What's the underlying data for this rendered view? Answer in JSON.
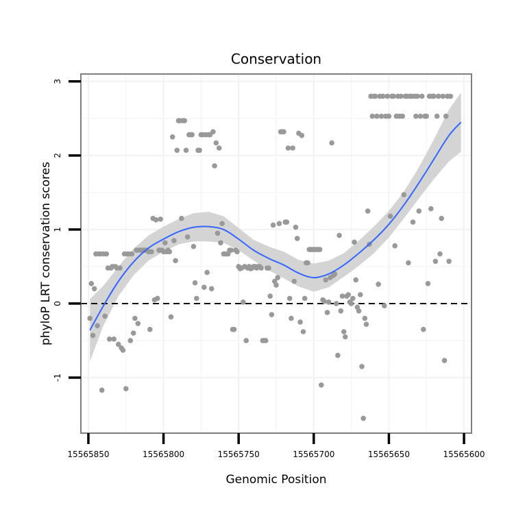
{
  "chart_data": {
    "type": "scatter",
    "title": "Conservation",
    "xlabel": "Genomic Position",
    "ylabel": "phyloP LRT conservation scores",
    "xlim": [
      15565855,
      15565595
    ],
    "ylim": [
      -1.75,
      3.1
    ],
    "x_reversed": true,
    "xticks": [
      15565850,
      15565800,
      15565750,
      15565700,
      15565650,
      15565600
    ],
    "xtick_labels": [
      "15565850",
      "15565800",
      "15565750",
      "15565700",
      "15565650",
      "15565600"
    ],
    "yticks": [
      -1,
      0,
      1,
      2,
      3
    ],
    "ytick_labels": [
      "-1",
      "0",
      "1",
      "2",
      "3"
    ],
    "reference_line": {
      "y": 0,
      "style": "dashed"
    },
    "colors": {
      "points": "#999999",
      "smooth": "#3366ff",
      "band": "#d4d4d4",
      "frame": "#7f7f7f",
      "grid": "#f2f2f2"
    },
    "series": [
      {
        "name": "scores",
        "points": [
          [
            15565849,
            -0.2
          ],
          [
            15565848,
            0.27
          ],
          [
            15565847,
            -0.43
          ],
          [
            15565846,
            0.2
          ],
          [
            15565845,
            0.67
          ],
          [
            15565844,
            -0.3
          ],
          [
            15565843,
            0.67
          ],
          [
            15565842,
            0.67
          ],
          [
            15565841,
            -1.17
          ],
          [
            15565840,
            0.67
          ],
          [
            15565839,
            -0.17
          ],
          [
            15565838,
            0.67
          ],
          [
            15565837,
            0.48
          ],
          [
            15565836,
            -0.48
          ],
          [
            15565835,
            0.48
          ],
          [
            15565834,
            0.5
          ],
          [
            15565833,
            -0.48
          ],
          [
            15565832,
            0.5
          ],
          [
            15565831,
            0.48
          ],
          [
            15565830,
            -0.55
          ],
          [
            15565829,
            0.48
          ],
          [
            15565828,
            -0.6
          ],
          [
            15565827,
            -0.63
          ],
          [
            15565826,
            0.67
          ],
          [
            15565825,
            -1.15
          ],
          [
            15565824,
            0.67
          ],
          [
            15565823,
            0.67
          ],
          [
            15565822,
            -0.5
          ],
          [
            15565821,
            0.67
          ],
          [
            15565820,
            -0.4
          ],
          [
            15565819,
            -0.2
          ],
          [
            15565818,
            0.72
          ],
          [
            15565817,
            -0.27
          ],
          [
            15565816,
            0.72
          ],
          [
            15565815,
            0.72
          ],
          [
            15565814,
            0.72
          ],
          [
            15565813,
            0.72
          ],
          [
            15565812,
            0.72
          ],
          [
            15565811,
            0.72
          ],
          [
            15565810,
            0.7
          ],
          [
            15565809,
            -0.35
          ],
          [
            15565808,
            0.7
          ],
          [
            15565807,
            1.15
          ],
          [
            15565806,
            0.05
          ],
          [
            15565805,
            1.13
          ],
          [
            15565804,
            0.07
          ],
          [
            15565803,
            0.72
          ],
          [
            15565802,
            1.14
          ],
          [
            15565801,
            0.72
          ],
          [
            15565800,
            0.7
          ],
          [
            15565799,
            0.82
          ],
          [
            15565798,
            0.7
          ],
          [
            15565797,
            0.72
          ],
          [
            15565796,
            0.7
          ],
          [
            15565795,
            -0.18
          ],
          [
            15565794,
            2.25
          ],
          [
            15565793,
            0.85
          ],
          [
            15565792,
            0.58
          ],
          [
            15565791,
            2.07
          ],
          [
            15565790,
            2.47
          ],
          [
            15565789,
            2.47
          ],
          [
            15565788,
            1.15
          ],
          [
            15565787,
            2.47
          ],
          [
            15565786,
            2.47
          ],
          [
            15565785,
            2.07
          ],
          [
            15565784,
            0.9
          ],
          [
            15565783,
            2.28
          ],
          [
            15565782,
            2.28
          ],
          [
            15565781,
            2.28
          ],
          [
            15565780,
            0.77
          ],
          [
            15565779,
            0.28
          ],
          [
            15565778,
            0.07
          ],
          [
            15565777,
            2.07
          ],
          [
            15565776,
            2.07
          ],
          [
            15565775,
            2.28
          ],
          [
            15565774,
            2.28
          ],
          [
            15565773,
            0.22
          ],
          [
            15565772,
            2.28
          ],
          [
            15565771,
            0.42
          ],
          [
            15565770,
            2.28
          ],
          [
            15565769,
            2.28
          ],
          [
            15565768,
            0.2
          ],
          [
            15565767,
            2.32
          ],
          [
            15565766,
            1.86
          ],
          [
            15565765,
            2.17
          ],
          [
            15565764,
            0.95
          ],
          [
            15565763,
            2.1
          ],
          [
            15565762,
            0.82
          ],
          [
            15565761,
            1.08
          ],
          [
            15565760,
            0.67
          ],
          [
            15565759,
            0.67
          ],
          [
            15565758,
            0.67
          ],
          [
            15565757,
            0.67
          ],
          [
            15565756,
            0.72
          ],
          [
            15565755,
            0.72
          ],
          [
            15565754,
            -0.35
          ],
          [
            15565753,
            -0.35
          ],
          [
            15565752,
            0.72
          ],
          [
            15565751,
            0.7
          ],
          [
            15565750,
            0.5
          ],
          [
            15565749,
            0.47
          ],
          [
            15565748,
            0.48
          ],
          [
            15565747,
            0.02
          ],
          [
            15565746,
            0.5
          ],
          [
            15565745,
            -0.5
          ],
          [
            15565744,
            0.48
          ],
          [
            15565743,
            0.5
          ],
          [
            15565742,
            0.47
          ],
          [
            15565741,
            0.48
          ],
          [
            15565740,
            0.5
          ],
          [
            15565739,
            0.5
          ],
          [
            15565738,
            0.48
          ],
          [
            15565737,
            0.5
          ],
          [
            15565736,
            0.5
          ],
          [
            15565735,
            0.48
          ],
          [
            15565734,
            -0.5
          ],
          [
            15565733,
            -0.5
          ],
          [
            15565732,
            -0.5
          ],
          [
            15565731,
            0.48
          ],
          [
            15565730,
            0.48
          ],
          [
            15565729,
            0.1
          ],
          [
            15565728,
            -0.15
          ],
          [
            15565727,
            1.06
          ],
          [
            15565726,
            0.3
          ],
          [
            15565725,
            0.25
          ],
          [
            15565724,
            0.35
          ],
          [
            15565723,
            1.08
          ],
          [
            15565722,
            2.32
          ],
          [
            15565721,
            2.32
          ],
          [
            15565720,
            2.32
          ],
          [
            15565719,
            1.1
          ],
          [
            15565718,
            1.1
          ],
          [
            15565717,
            2.1
          ],
          [
            15565716,
            0.07
          ],
          [
            15565715,
            -0.2
          ],
          [
            15565714,
            2.1
          ],
          [
            15565713,
            0.3
          ],
          [
            15565712,
            1.03
          ],
          [
            15565711,
            0.88
          ],
          [
            15565710,
            2.3
          ],
          [
            15565709,
            -0.25
          ],
          [
            15565708,
            2.27
          ],
          [
            15565707,
            -0.38
          ],
          [
            15565706,
            0.07
          ],
          [
            15565705,
            0.55
          ],
          [
            15565704,
            0.55
          ],
          [
            15565703,
            0.73
          ],
          [
            15565702,
            0.73
          ],
          [
            15565701,
            0.73
          ],
          [
            15565700,
            0.73
          ],
          [
            15565699,
            0.73
          ],
          [
            15565698,
            0.73
          ],
          [
            15565697,
            0.73
          ],
          [
            15565696,
            0.73
          ],
          [
            15565695,
            -1.1
          ],
          [
            15565694,
            0.05
          ],
          [
            15565693,
            0.03
          ],
          [
            15565692,
            0.32
          ],
          [
            15565691,
            -0.12
          ],
          [
            15565690,
            0.02
          ],
          [
            15565689,
            0.35
          ],
          [
            15565688,
            2.17
          ],
          [
            15565687,
            0.38
          ],
          [
            15565686,
            0.4
          ],
          [
            15565685,
            0.0
          ],
          [
            15565684,
            -0.7
          ],
          [
            15565683,
            0.92
          ],
          [
            15565682,
            -0.1
          ],
          [
            15565681,
            0.1
          ],
          [
            15565680,
            -0.38
          ],
          [
            15565679,
            -0.45
          ],
          [
            15565678,
            0.1
          ],
          [
            15565677,
            0.12
          ],
          [
            15565676,
            0.02
          ],
          [
            15565675,
            0.0
          ],
          [
            15565674,
            0.07
          ],
          [
            15565673,
            0.83
          ],
          [
            15565672,
            0.32
          ],
          [
            15565671,
            -0.05
          ],
          [
            15565670,
            -0.1
          ],
          [
            15565669,
            0.12
          ],
          [
            15565668,
            -0.85
          ],
          [
            15565667,
            -1.55
          ],
          [
            15565666,
            -0.2
          ],
          [
            15565665,
            -0.28
          ],
          [
            15565664,
            1.25
          ],
          [
            15565663,
            0.8
          ],
          [
            15565662,
            2.8
          ],
          [
            15565661,
            2.53
          ],
          [
            15565660,
            2.8
          ],
          [
            15565659,
            2.8
          ],
          [
            15565658,
            2.53
          ],
          [
            15565657,
            0.26
          ],
          [
            15565656,
            2.8
          ],
          [
            15565655,
            2.53
          ],
          [
            15565654,
            2.8
          ],
          [
            15565653,
            -0.03
          ],
          [
            15565652,
            2.53
          ],
          [
            15565651,
            2.8
          ],
          [
            15565650,
            2.53
          ],
          [
            15565649,
            1.18
          ],
          [
            15565648,
            2.8
          ],
          [
            15565647,
            2.8
          ],
          [
            15565646,
            0.78
          ],
          [
            15565645,
            2.53
          ],
          [
            15565644,
            2.8
          ],
          [
            15565643,
            2.53
          ],
          [
            15565642,
            2.8
          ],
          [
            15565641,
            2.53
          ],
          [
            15565640,
            1.47
          ],
          [
            15565639,
            2.8
          ],
          [
            15565638,
            2.8
          ],
          [
            15565637,
            0.55
          ],
          [
            15565636,
            2.8
          ],
          [
            15565635,
            2.8
          ],
          [
            15565634,
            1.1
          ],
          [
            15565633,
            2.8
          ],
          [
            15565632,
            2.53
          ],
          [
            15565631,
            2.8
          ],
          [
            15565630,
            1.25
          ],
          [
            15565629,
            2.53
          ],
          [
            15565628,
            2.8
          ],
          [
            15565627,
            -0.35
          ],
          [
            15565626,
            2.53
          ],
          [
            15565625,
            2.53
          ],
          [
            15565624,
            0.27
          ],
          [
            15565623,
            2.8
          ],
          [
            15565622,
            1.28
          ],
          [
            15565621,
            2.8
          ],
          [
            15565620,
            2.8
          ],
          [
            15565619,
            0.57
          ],
          [
            15565618,
            2.53
          ],
          [
            15565617,
            2.8
          ],
          [
            15565616,
            0.67
          ],
          [
            15565615,
            1.15
          ],
          [
            15565614,
            2.8
          ],
          [
            15565613,
            -0.77
          ],
          [
            15565612,
            2.53
          ],
          [
            15565611,
            2.8
          ],
          [
            15565610,
            0.57
          ],
          [
            15565609,
            2.8
          ]
        ]
      }
    ],
    "smooth_fit": [
      {
        "x": 15565849,
        "y": -0.36,
        "lo": -0.78,
        "hi": 0.06
      },
      {
        "x": 15565840,
        "y": -0.03,
        "lo": -0.3,
        "hi": 0.24
      },
      {
        "x": 15565830,
        "y": 0.3,
        "lo": 0.1,
        "hi": 0.5
      },
      {
        "x": 15565820,
        "y": 0.56,
        "lo": 0.38,
        "hi": 0.74
      },
      {
        "x": 15565810,
        "y": 0.75,
        "lo": 0.58,
        "hi": 0.92
      },
      {
        "x": 15565800,
        "y": 0.87,
        "lo": 0.7,
        "hi": 1.04
      },
      {
        "x": 15565790,
        "y": 0.97,
        "lo": 0.8,
        "hi": 1.14
      },
      {
        "x": 15565780,
        "y": 1.03,
        "lo": 0.84,
        "hi": 1.22
      },
      {
        "x": 15565770,
        "y": 1.04,
        "lo": 0.84,
        "hi": 1.24
      },
      {
        "x": 15565760,
        "y": 1.0,
        "lo": 0.82,
        "hi": 1.18
      },
      {
        "x": 15565750,
        "y": 0.87,
        "lo": 0.72,
        "hi": 1.02
      },
      {
        "x": 15565740,
        "y": 0.72,
        "lo": 0.58,
        "hi": 0.86
      },
      {
        "x": 15565730,
        "y": 0.61,
        "lo": 0.45,
        "hi": 0.77
      },
      {
        "x": 15565720,
        "y": 0.52,
        "lo": 0.34,
        "hi": 0.7
      },
      {
        "x": 15565710,
        "y": 0.41,
        "lo": 0.23,
        "hi": 0.59
      },
      {
        "x": 15565700,
        "y": 0.35,
        "lo": 0.16,
        "hi": 0.54
      },
      {
        "x": 15565690,
        "y": 0.4,
        "lo": 0.22,
        "hi": 0.58
      },
      {
        "x": 15565680,
        "y": 0.52,
        "lo": 0.36,
        "hi": 0.68
      },
      {
        "x": 15565670,
        "y": 0.68,
        "lo": 0.51,
        "hi": 0.85
      },
      {
        "x": 15565660,
        "y": 0.86,
        "lo": 0.68,
        "hi": 1.04
      },
      {
        "x": 15565650,
        "y": 1.07,
        "lo": 0.89,
        "hi": 1.25
      },
      {
        "x": 15565640,
        "y": 1.33,
        "lo": 1.15,
        "hi": 1.51
      },
      {
        "x": 15565630,
        "y": 1.63,
        "lo": 1.42,
        "hi": 1.84
      },
      {
        "x": 15565620,
        "y": 1.95,
        "lo": 1.68,
        "hi": 2.22
      },
      {
        "x": 15565610,
        "y": 2.27,
        "lo": 1.92,
        "hi": 2.62
      },
      {
        "x": 15565602,
        "y": 2.45,
        "lo": 2.05,
        "hi": 2.85
      }
    ]
  }
}
